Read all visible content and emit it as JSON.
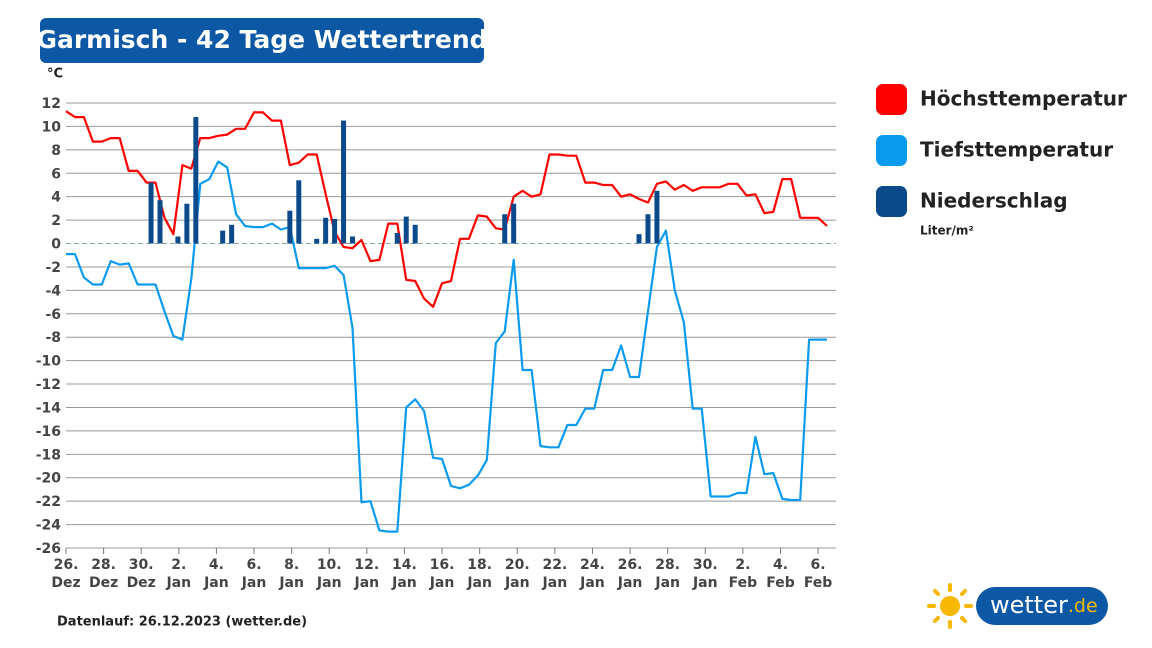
{
  "title": "Garmisch - 42 Tage Wettertrend",
  "footer": "Datenlauf: 26.12.2023 (wetter.de)",
  "logo": {
    "text": "wetter",
    "tld": ".de"
  },
  "chart_data": {
    "type": "line",
    "y_label": "°C",
    "unit_note": "Liter/m²",
    "grid": true,
    "legend": "right",
    "xlim": [
      0,
      43
    ],
    "ylim": [
      -26,
      12
    ],
    "yticks": [
      12,
      10,
      8,
      6,
      4,
      2,
      0,
      -2,
      -4,
      -6,
      -8,
      -10,
      -12,
      -14,
      -16,
      -18,
      -20,
      -22,
      -24,
      -26
    ],
    "xticks": [
      {
        "value": 0,
        "label": "26. Dez"
      },
      {
        "value": 2.1,
        "label": "28. Dez"
      },
      {
        "value": 4.2,
        "label": "30. Dez"
      },
      {
        "value": 6.3,
        "label": "2. Jan"
      },
      {
        "value": 8.4,
        "label": "4. Jan"
      },
      {
        "value": 10.5,
        "label": "6. Jan"
      },
      {
        "value": 12.6,
        "label": "8. Jan"
      },
      {
        "value": 14.7,
        "label": "10. Jan"
      },
      {
        "value": 16.8,
        "label": "12. Jan"
      },
      {
        "value": 18.9,
        "label": "14. Jan"
      },
      {
        "value": 21,
        "label": "16. Jan"
      },
      {
        "value": 23.1,
        "label": "18. Jan"
      },
      {
        "value": 25.2,
        "label": "20. Jan"
      },
      {
        "value": 27.3,
        "label": "22. Jan"
      },
      {
        "value": 29.4,
        "label": "24. Jan"
      },
      {
        "value": 31.5,
        "label": "26. Jan"
      },
      {
        "value": 33.6,
        "label": "28. Jan"
      },
      {
        "value": 35.7,
        "label": "30. Jan"
      },
      {
        "value": 37.8,
        "label": "2. Feb"
      },
      {
        "value": 39.9,
        "label": "4. Feb"
      },
      {
        "value": 42,
        "label": "6. Feb"
      }
    ],
    "x": [
      0,
      0.5,
      1,
      1.5,
      2,
      2.5,
      3,
      3.5,
      4,
      4.5,
      5,
      5.5,
      6,
      6.5,
      7,
      7.5,
      8,
      8.5,
      9,
      9.5,
      10,
      10.5,
      11,
      11.5,
      12,
      12.5,
      13,
      13.5,
      14,
      14.5,
      15,
      15.5,
      16,
      16.5,
      17,
      17.5,
      18,
      18.5,
      19,
      19.5,
      20,
      20.5,
      21,
      21.5,
      22,
      22.5,
      23,
      23.5,
      24,
      24.5,
      25,
      25.5,
      26,
      26.5,
      27,
      27.5,
      28,
      28.5,
      29,
      29.5,
      30,
      30.5,
      31,
      31.5,
      32,
      32.5,
      33,
      33.5,
      34,
      34.5,
      35,
      35.5,
      36,
      36.5,
      37,
      37.5,
      38,
      38.5,
      39,
      39.5,
      40,
      40.5,
      41,
      41.5,
      42,
      42.5
    ],
    "series": [
      {
        "name": "Höchsttemperatur",
        "color": "#ff0000",
        "values": [
          11.3,
          10.8,
          10.8,
          8.7,
          8.7,
          9.0,
          9.0,
          6.2,
          6.2,
          5.2,
          5.2,
          2.2,
          0.8,
          6.7,
          6.4,
          9.0,
          9.0,
          9.2,
          9.3,
          9.8,
          9.8,
          11.2,
          11.2,
          10.5,
          10.5,
          6.7,
          6.9,
          7.6,
          7.6,
          4.2,
          1.0,
          -0.3,
          -0.4,
          0.3,
          -1.5,
          -1.4,
          1.7,
          1.7,
          -3.1,
          -3.2,
          -4.7,
          -5.4,
          -3.4,
          -3.2,
          0.4,
          0.4,
          2.4,
          2.3,
          1.3,
          1.2,
          4.0,
          4.5,
          4.0,
          4.2,
          7.6,
          7.6,
          7.5,
          7.5,
          5.2,
          5.2,
          5.0,
          5.0,
          4.0,
          4.2,
          3.8,
          3.5,
          5.1,
          5.3,
          4.6,
          5.0,
          4.5,
          4.8,
          4.8,
          4.8,
          5.1,
          5.1,
          4.1,
          4.2,
          2.6,
          2.7,
          5.5,
          5.5,
          2.2,
          2.2,
          2.2,
          1.5
        ]
      },
      {
        "name": "Tiefsttemperatur",
        "color": "#0a9bef",
        "values": [
          -0.9,
          -0.9,
          -2.9,
          -3.5,
          -3.5,
          -1.5,
          -1.8,
          -1.7,
          -3.5,
          -3.5,
          -3.5,
          -5.8,
          -7.9,
          -8.2,
          -3.0,
          5.1,
          5.5,
          7.0,
          6.5,
          2.5,
          1.5,
          1.4,
          1.4,
          1.7,
          1.2,
          1.4,
          -2.1,
          -2.1,
          -2.1,
          -2.1,
          -1.9,
          -2.7,
          -7.2,
          -22.1,
          -22.0,
          -24.5,
          -24.6,
          -24.6,
          -14.0,
          -13.3,
          -14.3,
          -18.3,
          -18.4,
          -20.7,
          -20.9,
          -20.6,
          -19.8,
          -18.5,
          -8.5,
          -7.5,
          -1.4,
          -10.8,
          -10.8,
          -17.3,
          -17.4,
          -17.4,
          -15.5,
          -15.5,
          -14.1,
          -14.1,
          -10.8,
          -10.8,
          -8.7,
          -11.4,
          -11.4,
          -5.8,
          -0.3,
          1.1,
          -4.0,
          -6.7,
          -14.1,
          -14.1,
          -21.6,
          -21.6,
          -21.6,
          -21.3,
          -21.3,
          -16.5,
          -19.7,
          -19.6,
          -21.8,
          -21.9,
          -21.9,
          -8.2,
          -8.2,
          -8.2
        ]
      },
      {
        "name": "Niederschlag",
        "color": "#0b4a8a",
        "type": "bar",
        "x": [
          4.75,
          5.25,
          6.25,
          6.75,
          7.25,
          8.75,
          9.25,
          12.5,
          13,
          14,
          14.5,
          15,
          15.5,
          16,
          18.5,
          19,
          19.5,
          24.5,
          25,
          32,
          32.5,
          33
        ],
        "values": [
          5.2,
          3.7,
          0.6,
          3.4,
          10.8,
          1.1,
          1.6,
          2.8,
          5.4,
          0.4,
          2.2,
          2.1,
          10.5,
          0.6,
          0.9,
          2.3,
          1.6,
          2.5,
          3.4,
          0.8,
          2.5,
          4.5
        ]
      }
    ]
  }
}
